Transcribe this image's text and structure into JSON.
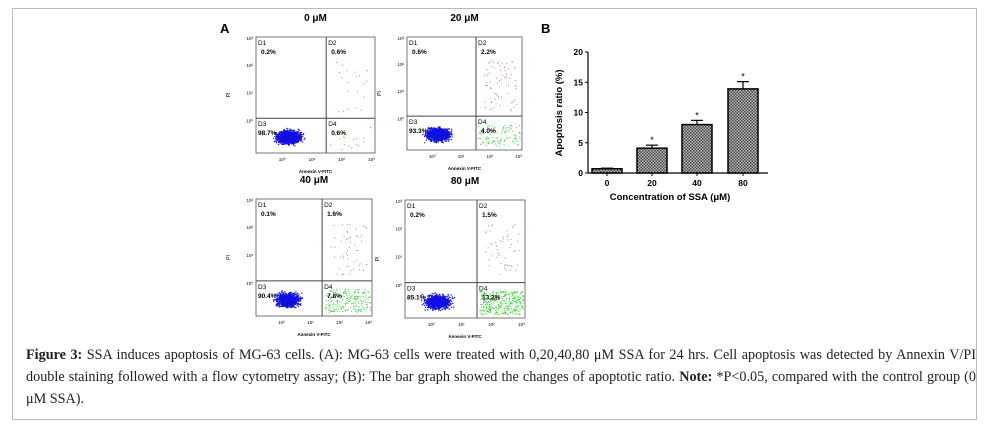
{
  "panel_a": {
    "label": "A",
    "x_axis_label": "Annexin V-FITC",
    "y_axis_label": "PI",
    "tick_labels": [
      "10⁰",
      "10¹",
      "10²",
      "10³"
    ],
    "plots": [
      {
        "title": "0 μM",
        "quadrants": [
          {
            "name": "D1",
            "value": "0.2%"
          },
          {
            "name": "D2",
            "value": "0.6%"
          },
          {
            "name": "D3",
            "value": "98.7%"
          },
          {
            "name": "D4",
            "value": "0.6%"
          }
        ]
      },
      {
        "title": "20 μM",
        "quadrants": [
          {
            "name": "D1",
            "value": "0.6%"
          },
          {
            "name": "D2",
            "value": "2.2%"
          },
          {
            "name": "D3",
            "value": "93.3%"
          },
          {
            "name": "D4",
            "value": "4.0%"
          }
        ]
      },
      {
        "title": "40 μM",
        "quadrants": [
          {
            "name": "D1",
            "value": "0.1%"
          },
          {
            "name": "D2",
            "value": "1.6%"
          },
          {
            "name": "D3",
            "value": "90.4%"
          },
          {
            "name": "D4",
            "value": "7.8%"
          }
        ]
      },
      {
        "title": "80 μM",
        "quadrants": [
          {
            "name": "D1",
            "value": "0.2%"
          },
          {
            "name": "D2",
            "value": "1.5%"
          },
          {
            "name": "D3",
            "value": "85.1%"
          },
          {
            "name": "D4",
            "value": "13.2%"
          }
        ]
      }
    ],
    "colors": {
      "viable": "#1010e0",
      "early_apoptotic": "#3cd23c",
      "late_apoptotic": "#c08080"
    }
  },
  "chart_data": {
    "type": "bar",
    "panel_label": "B",
    "categories": [
      "0",
      "20",
      "40",
      "80"
    ],
    "values": [
      0.7,
      4.1,
      8.0,
      13.9
    ],
    "errors": [
      0.1,
      0.5,
      0.7,
      1.2
    ],
    "significance": [
      "",
      "*",
      "*",
      "*"
    ],
    "xlabel": "Concentration of SSA  (μM)",
    "ylabel": "Apoptosis ratio (%)",
    "ylim": [
      0,
      20
    ],
    "yticks": [
      "0",
      "5",
      "10",
      "15",
      "20"
    ],
    "grid": false,
    "bar_fill": "checkered gray"
  },
  "caption": {
    "label": "Figure 3:",
    "text": " SSA induces apoptosis of MG-63 cells. (A): MG-63 cells were treated with 0,20,40,80 μM SSA for 24 hrs. Cell apoptosis was detected by Annexin V/PI double staining followed with a flow cytometry assay; (B): The bar graph showed the changes of apoptotic ratio. ",
    "note_label": "Note:",
    "note_text": " *P<0.05, compared with the control group (0 μM SSA)."
  }
}
